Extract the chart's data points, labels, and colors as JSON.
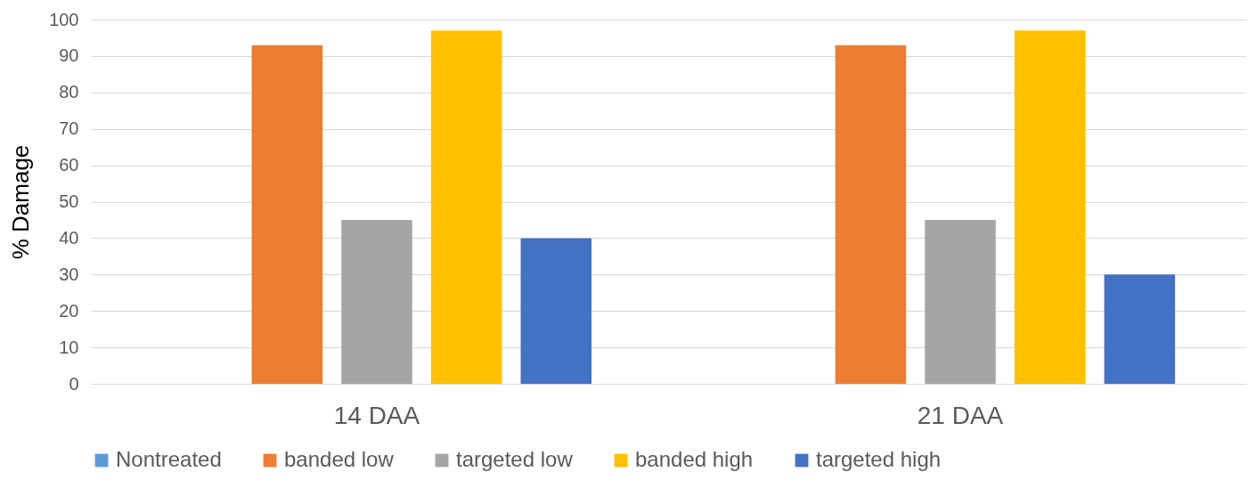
{
  "chart_data": {
    "type": "bar",
    "ylabel": "% Damage",
    "categories": [
      "14 DAA",
      "21 DAA"
    ],
    "series": [
      {
        "name": "Nontreated",
        "color": "#5b9bd5",
        "values": [
          0,
          0
        ]
      },
      {
        "name": "banded low",
        "color": "#ed7d31",
        "values": [
          93,
          93
        ]
      },
      {
        "name": "targeted low",
        "color": "#a5a5a5",
        "values": [
          45,
          45
        ]
      },
      {
        "name": "banded high",
        "color": "#ffc000",
        "values": [
          97,
          97
        ]
      },
      {
        "name": "targeted high",
        "color": "#4472c4",
        "values": [
          40,
          30
        ]
      }
    ],
    "ylim": [
      0,
      100
    ],
    "yticks": [
      0,
      10,
      20,
      30,
      40,
      50,
      60,
      70,
      80,
      90,
      100
    ],
    "grid": "y",
    "legend": "bottom"
  }
}
